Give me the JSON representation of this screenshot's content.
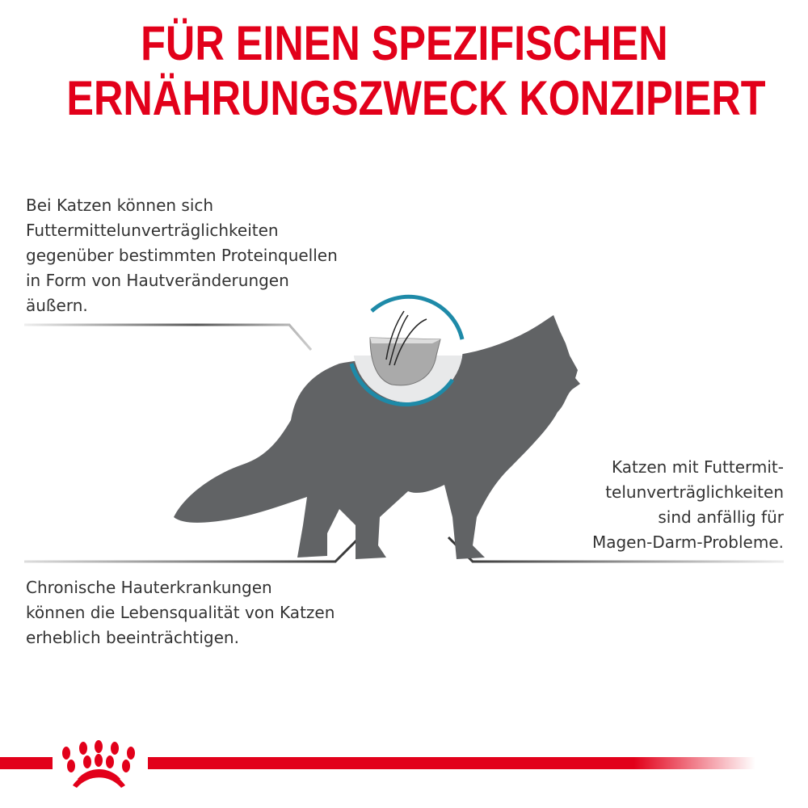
{
  "headline": {
    "line1": "FÜR EINEN SPEZIFISCHEN",
    "line2": "ERNÄHRUNGSZWECK KONZIPIERT"
  },
  "callouts": {
    "top_left": [
      "Bei Katzen können sich",
      "Futtermittelunverträglichkeiten",
      "gegenüber bestimmten Proteinquellen",
      "in Form von Hautveränderungen",
      "äußern."
    ],
    "bottom_left": [
      "Chronische Hauterkrankungen",
      "können die Lebensqualität von Katzen",
      "erheblich beeinträchtigen."
    ],
    "right": [
      "Katzen mit Futtermit-",
      "telunverträglichkeiten",
      "sind anfällig für",
      "Magen-Darm-Probleme."
    ]
  },
  "colors": {
    "brand_red": "#e2001a",
    "cat_gray": "#616365",
    "ring_blue": "#1e8aa8",
    "text": "#333333"
  },
  "icons": [
    "cat-silhouette",
    "skin-hair-cross-section-icon",
    "royal-canin-crown-logo"
  ]
}
